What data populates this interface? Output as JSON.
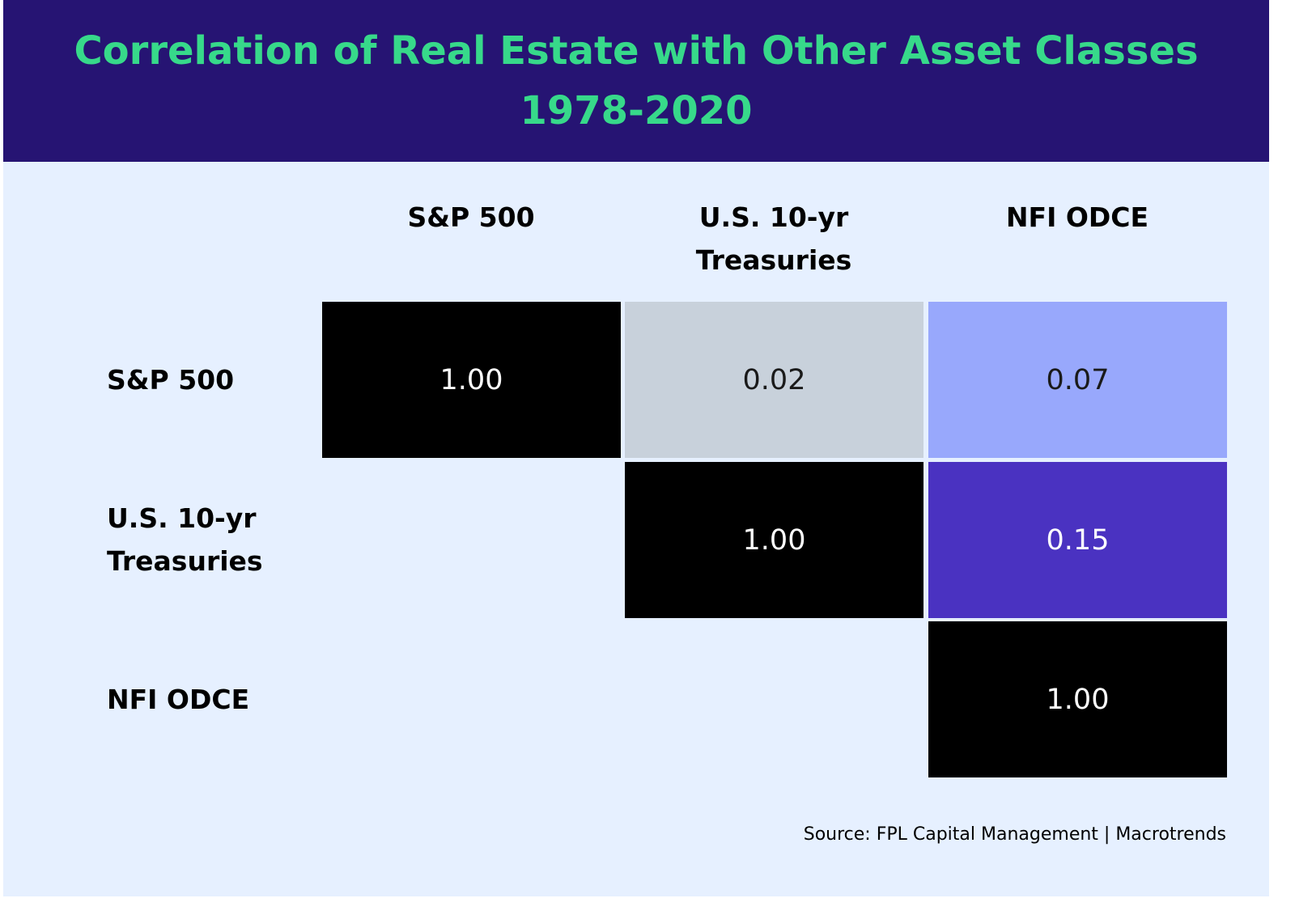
{
  "chart_data": {
    "type": "heatmap",
    "title": "Correlation of Real Estate with Other Asset Classes",
    "subtitle": "1978-2020",
    "columns": [
      {
        "line1": "S&P 500",
        "line2": ""
      },
      {
        "line1": "U.S. 10-yr",
        "line2": "Treasuries"
      },
      {
        "line1": "NFI ODCE",
        "line2": ""
      }
    ],
    "rows": [
      {
        "line1": "S&P 500",
        "line2": ""
      },
      {
        "line1": "U.S. 10-yr",
        "line2": "Treasuries"
      },
      {
        "line1": "NFI ODCE",
        "line2": ""
      }
    ],
    "cells": [
      {
        "row": 0,
        "col": 0,
        "label": "1.00",
        "color": "#000000",
        "text_color": "#ffffff"
      },
      {
        "row": 0,
        "col": 1,
        "label": "0.02",
        "color": "#c8d1db",
        "text_color": "#1a1a1a"
      },
      {
        "row": 0,
        "col": 2,
        "label": "0.07",
        "color": "#98a8fc",
        "text_color": "#1a1a1a"
      },
      {
        "row": 1,
        "col": 1,
        "label": "1.00",
        "color": "#000000",
        "text_color": "#ffffff"
      },
      {
        "row": 1,
        "col": 2,
        "label": "0.15",
        "color": "#4a32c1",
        "text_color": "#ffffff"
      },
      {
        "row": 2,
        "col": 2,
        "label": "1.00",
        "color": "#000000",
        "text_color": "#ffffff"
      }
    ],
    "source": "Source: FPL Capital Management | Macrotrends"
  },
  "colors": {
    "header_bg": "#261473",
    "title": "#37d98a",
    "panel_bg": "#e6f0ff"
  }
}
